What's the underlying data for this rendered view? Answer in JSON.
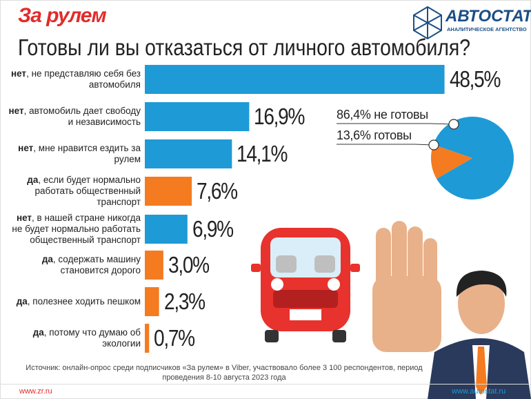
{
  "header": {
    "logo_left": "За рулем",
    "logo_right": "АВТОСТАТ",
    "logo_right_sub": "АНАЛИТИЧЕСКОЕ АГЕНТСТВО"
  },
  "chart_data": [
    {
      "type": "barh",
      "title": "Готовы ли вы отказаться от личного автомобиля?",
      "categories": [
        "нет, не представляю себя без автомобиля",
        "нет, автомобиль дает свободу и независимость",
        "нет, мне нравится ездить за рулем",
        "да, если будет нормально работать общественный транспорт",
        "нет, в нашей стране никогда не будет нормально работать общественный транспорт",
        "да, содержать машину становится дорого",
        "да, полезнее ходить пешком",
        "да, потому что думаю об экологии"
      ],
      "values": [
        48.5,
        16.9,
        14.1,
        7.6,
        6.9,
        3.0,
        2.3,
        0.7
      ],
      "value_labels": [
        "48,5%",
        "16,9%",
        "14,1%",
        "7,6%",
        "6,9%",
        "3,0%",
        "2,3%",
        "0,7%"
      ],
      "colors": [
        "#1e9ad6",
        "#1e9ad6",
        "#1e9ad6",
        "#f47b20",
        "#1e9ad6",
        "#f47b20",
        "#f47b20",
        "#f47b20"
      ],
      "xlim": [
        0,
        50
      ]
    },
    {
      "type": "pie",
      "categories": [
        "не готовы",
        "готовы"
      ],
      "values": [
        86.4,
        13.6
      ],
      "value_labels": [
        "86,4%",
        "13,6%"
      ],
      "colors": [
        "#1e9ad6",
        "#f47b20"
      ]
    }
  ],
  "footer": {
    "source": "Источник: онлайн-опрос среди подписчиков «За рулем» в Viber, участвовало более 3 100 респондентов, период проведения 8-10 августа 2023 года",
    "left_url": "www.zr.ru",
    "right_url": "www.autostat.ru"
  }
}
